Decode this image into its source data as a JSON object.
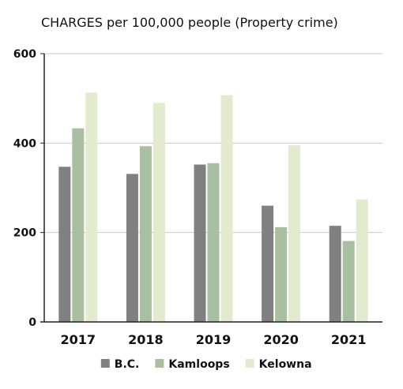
{
  "chart_data": {
    "type": "bar",
    "title": "CHARGES per 100,000 people (Property crime)",
    "categories": [
      "2017",
      "2018",
      "2019",
      "2020",
      "2021"
    ],
    "series": [
      {
        "name": "B.C.",
        "color": "#808080",
        "values": [
          347,
          331,
          352,
          260,
          215
        ]
      },
      {
        "name": "Kamloops",
        "color": "#a9bfa1",
        "values": [
          433,
          393,
          355,
          212,
          181
        ]
      },
      {
        "name": "Kelowna",
        "color": "#e3ebcf",
        "values": [
          513,
          490,
          507,
          395,
          274
        ]
      }
    ],
    "ylim": [
      0,
      600
    ],
    "yticks": [
      0,
      200,
      400,
      600
    ],
    "grid": true,
    "legend": "bottom"
  }
}
